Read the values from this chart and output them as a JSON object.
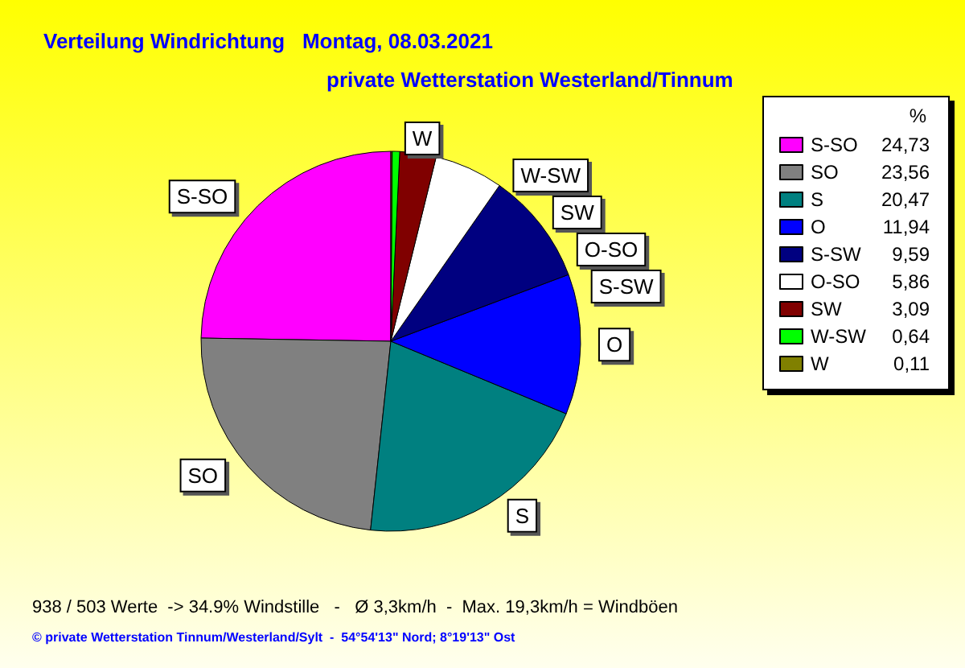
{
  "chart_data": {
    "type": "pie",
    "title": "Verteilung Windrichtung   Montag, 08.03.2021",
    "subtitle": "private Wetterstation Westerland/Tinnum",
    "legend_title": "%",
    "categories": [
      "S-SO",
      "SO",
      "S",
      "O",
      "S-SW",
      "O-SO",
      "SW",
      "W-SW",
      "W"
    ],
    "values": [
      24.73,
      23.56,
      20.47,
      11.94,
      9.59,
      5.86,
      3.09,
      0.64,
      0.11
    ],
    "colors": [
      "#ff00ff",
      "#808080",
      "#008080",
      "#0000ff",
      "#000080",
      "#ffffff",
      "#800000",
      "#00ff00",
      "#808000"
    ],
    "value_labels": [
      "24,73",
      "23,56",
      "20,47",
      "11,94",
      "9,59",
      "5,86",
      "3,09",
      "0,64",
      "0,11"
    ],
    "legend": "right",
    "annotations": [
      "938 / 503 Werte  -> 34.9% Windstille   -   Ø 3,3km/h  -  Max. 19,3km/h = Windböen",
      "© private Wetterstation Tinnum/Westerland/Sylt  -  54°54'13\" Nord; 8°19'13\" Ost"
    ]
  }
}
